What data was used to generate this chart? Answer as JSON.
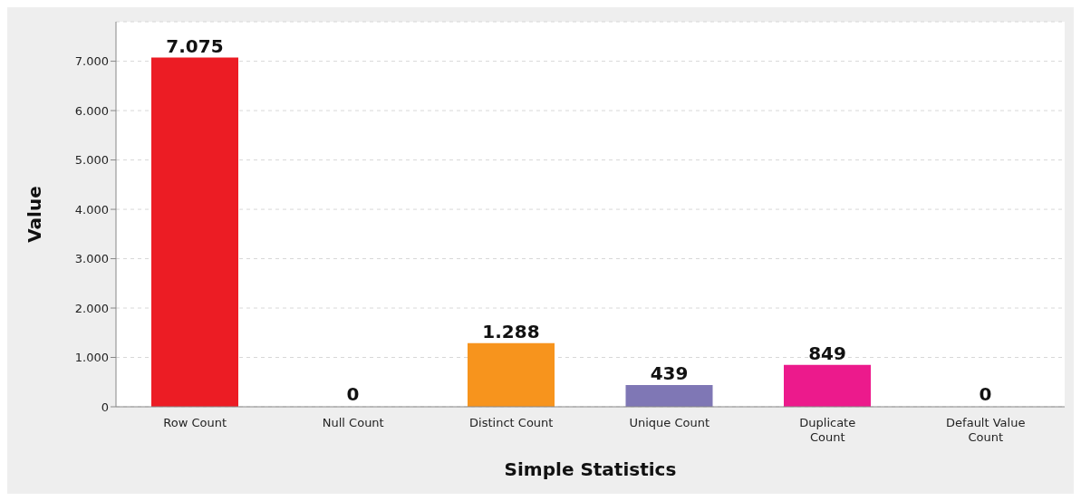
{
  "chart_data": {
    "type": "bar",
    "xlabel": "Simple Statistics",
    "ylabel": "Value",
    "categories": [
      "Row Count",
      "Null Count",
      "Distinct Count",
      "Unique Count",
      "Duplicate Count",
      "Default Value Count"
    ],
    "values": [
      7075,
      0,
      1288,
      439,
      849,
      0
    ],
    "colors": [
      "#ec1c24",
      null,
      "#f7941d",
      "#7f77b5",
      "#ec1a8c",
      null
    ],
    "value_labels": [
      "7.075",
      "0",
      "1.288",
      "439",
      "849",
      "0"
    ],
    "ylim": [
      0,
      7800
    ],
    "yticks": [
      {
        "value": 0,
        "label": "0"
      },
      {
        "value": 1000,
        "label": "1.000"
      },
      {
        "value": 2000,
        "label": "2.000"
      },
      {
        "value": 3000,
        "label": "3.000"
      },
      {
        "value": 4000,
        "label": "4.000"
      },
      {
        "value": 5000,
        "label": "5.000"
      },
      {
        "value": 6000,
        "label": "6.000"
      },
      {
        "value": 7000,
        "label": "7.000"
      }
    ],
    "grid": "y",
    "legend": false
  }
}
